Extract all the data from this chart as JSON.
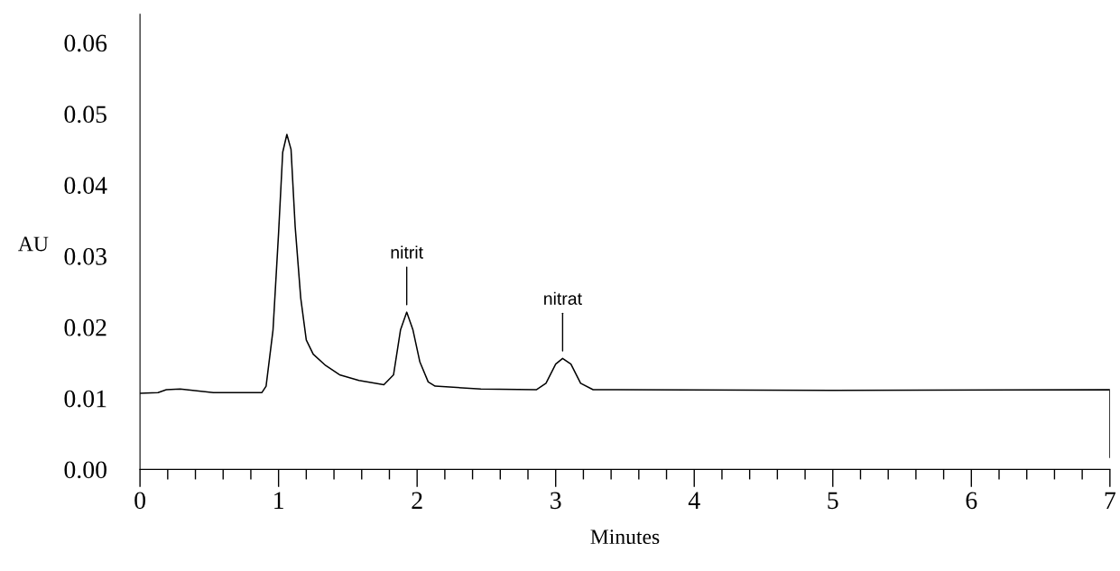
{
  "chart_data": {
    "type": "line",
    "xlabel": "Minutes",
    "ylabel": "AU",
    "x": [
      0.0,
      0.13,
      0.19,
      0.29,
      0.53,
      0.88,
      0.91,
      0.96,
      1.0,
      1.03,
      1.06,
      1.09,
      1.12,
      1.16,
      1.2,
      1.25,
      1.34,
      1.44,
      1.58,
      1.76,
      1.83,
      1.88,
      1.925,
      1.97,
      2.02,
      2.08,
      2.13,
      2.46,
      2.86,
      2.93,
      3.0,
      3.05,
      3.11,
      3.18,
      3.27,
      3.45,
      5.0,
      7.0,
      7.0
    ],
    "series": [
      {
        "color": "#000000",
        "values": [
          0.0107,
          0.0108,
          0.0112,
          0.0113,
          0.0108,
          0.0108,
          0.0117,
          0.0196,
          0.0332,
          0.0446,
          0.0471,
          0.045,
          0.0341,
          0.0241,
          0.0182,
          0.0162,
          0.0146,
          0.0133,
          0.0125,
          0.0119,
          0.0133,
          0.0196,
          0.0221,
          0.0196,
          0.0151,
          0.0123,
          0.0117,
          0.0113,
          0.0112,
          0.0121,
          0.0148,
          0.0156,
          0.0148,
          0.0121,
          0.0112,
          0.0112,
          0.0111,
          0.0112,
          0.0017
        ]
      }
    ],
    "annotations": [
      {
        "text": "nitrit",
        "x": 1.925,
        "y": 0.0221
      },
      {
        "text": "nitrat",
        "x": 3.05,
        "y": 0.0156
      }
    ],
    "xlim": [
      0,
      7
    ],
    "ylim": [
      0,
      0.064
    ],
    "xticks": [
      0,
      {
        "value": 0.2,
        "label": null
      },
      {
        "value": 0.4,
        "label": null
      },
      {
        "value": 0.6,
        "label": null
      },
      {
        "value": 0.8,
        "label": null
      },
      1,
      {
        "value": 1.2,
        "label": null
      },
      {
        "value": 1.4,
        "label": null
      },
      {
        "value": 1.6,
        "label": null
      },
      {
        "value": 1.8,
        "label": null
      },
      2,
      {
        "value": 2.2,
        "label": null
      },
      {
        "value": 2.4,
        "label": null
      },
      {
        "value": 2.6,
        "label": null
      },
      {
        "value": 2.8,
        "label": null
      },
      3,
      {
        "value": 3.2,
        "label": null
      },
      {
        "value": 3.4,
        "label": null
      },
      {
        "value": 3.6,
        "label": null
      },
      {
        "value": 3.8,
        "label": null
      },
      4,
      {
        "value": 4.2,
        "label": null
      },
      {
        "value": 4.4,
        "label": null
      },
      {
        "value": 4.6,
        "label": null
      },
      {
        "value": 4.8,
        "label": null
      },
      5,
      {
        "value": 5.2,
        "label": null
      },
      {
        "value": 5.4,
        "label": null
      },
      {
        "value": 5.6,
        "label": null
      },
      {
        "value": 5.8,
        "label": null
      },
      6,
      {
        "value": 6.2,
        "label": null
      },
      {
        "value": 6.4,
        "label": null
      },
      {
        "value": 6.6,
        "label": null
      },
      {
        "value": 6.8,
        "label": null
      },
      7
    ],
    "yticks": [
      {
        "value": 0,
        "label": "0.00"
      },
      {
        "value": 0.01,
        "label": "0.01"
      },
      {
        "value": 0.02,
        "label": "0.02"
      },
      {
        "value": 0.03,
        "label": "0.03"
      },
      {
        "value": 0.04,
        "label": "0.04"
      },
      {
        "value": 0.05,
        "label": "0.05"
      },
      {
        "value": 0.06,
        "label": "0.06"
      }
    ],
    "grid": false,
    "legend": false,
    "marker": "none",
    "line_style": "solid"
  }
}
